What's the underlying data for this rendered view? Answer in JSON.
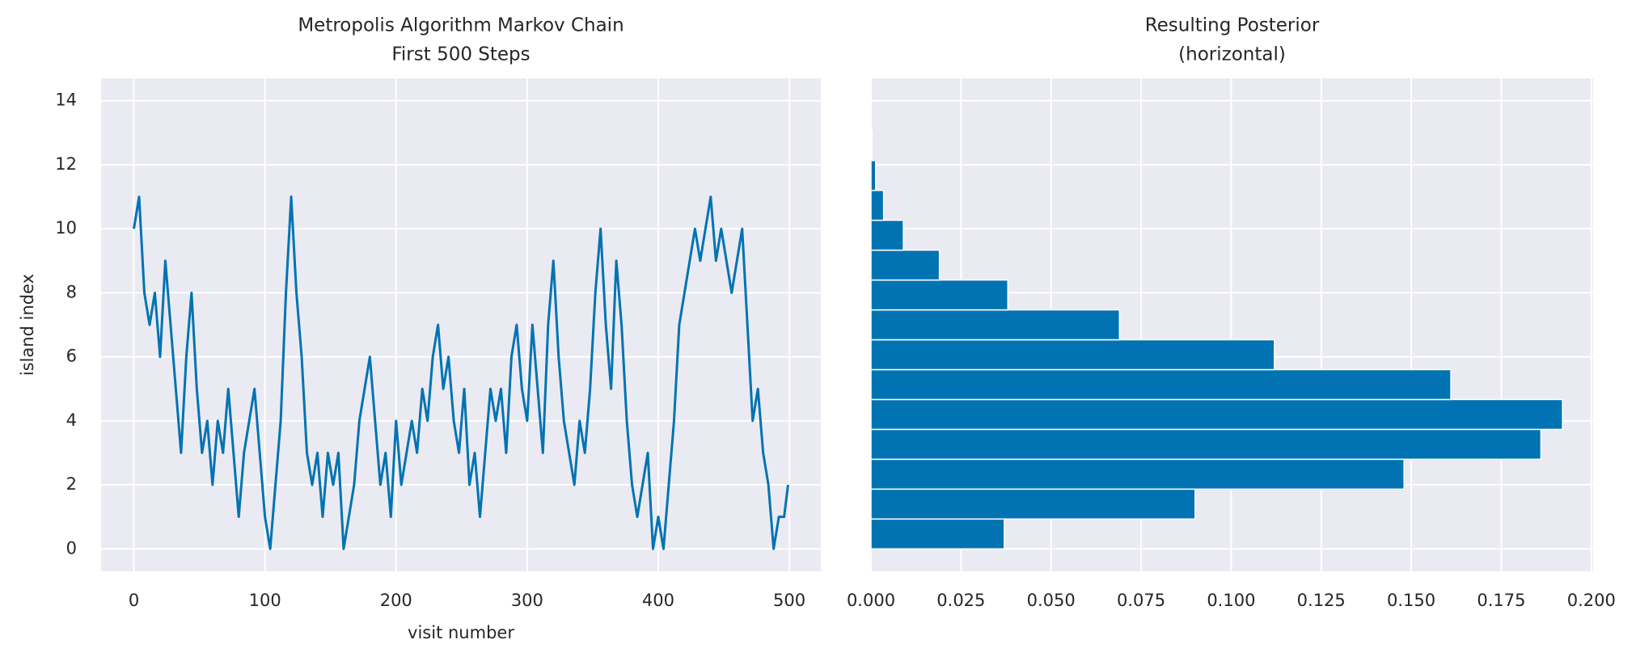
{
  "chart_data": [
    {
      "type": "line",
      "title": "Metropolis Algorithm Markov Chain",
      "subtitle": "First 500 Steps",
      "x_label": "visit number",
      "y_label": "island index",
      "x": [
        0,
        4,
        8,
        12,
        16,
        20,
        24,
        28,
        32,
        36,
        40,
        44,
        48,
        52,
        56,
        60,
        64,
        68,
        72,
        76,
        80,
        84,
        88,
        92,
        96,
        100,
        104,
        108,
        112,
        116,
        120,
        124,
        128,
        132,
        136,
        140,
        144,
        148,
        152,
        156,
        160,
        164,
        168,
        172,
        176,
        180,
        184,
        188,
        192,
        196,
        200,
        204,
        208,
        212,
        216,
        220,
        224,
        228,
        232,
        236,
        240,
        244,
        248,
        252,
        256,
        260,
        264,
        268,
        272,
        276,
        280,
        284,
        288,
        292,
        296,
        300,
        304,
        308,
        312,
        316,
        320,
        324,
        328,
        332,
        336,
        340,
        344,
        348,
        352,
        356,
        360,
        364,
        368,
        372,
        376,
        380,
        384,
        388,
        392,
        396,
        400,
        404,
        408,
        412,
        416,
        420,
        424,
        428,
        432,
        436,
        440,
        444,
        448,
        452,
        456,
        460,
        464,
        468,
        472,
        476,
        480,
        484,
        488,
        492,
        496,
        499
      ],
      "series": [
        {
          "name": "chain",
          "color": "#0173b2",
          "values": [
            10,
            11,
            8,
            7,
            8,
            6,
            9,
            7,
            5,
            3,
            6,
            8,
            5,
            3,
            4,
            2,
            4,
            3,
            5,
            3,
            1,
            3,
            4,
            5,
            3,
            1,
            0,
            2,
            4,
            8,
            11,
            8,
            6,
            3,
            2,
            3,
            1,
            3,
            2,
            3,
            0,
            1,
            2,
            4,
            5,
            6,
            4,
            2,
            3,
            1,
            4,
            2,
            3,
            4,
            3,
            5,
            4,
            6,
            7,
            5,
            6,
            4,
            3,
            5,
            2,
            3,
            1,
            3,
            5,
            4,
            5,
            3,
            6,
            7,
            5,
            4,
            7,
            5,
            3,
            7,
            9,
            6,
            4,
            3,
            2,
            4,
            3,
            5,
            8,
            10,
            7,
            5,
            9,
            7,
            4,
            2,
            1,
            2,
            3,
            0,
            1,
            0,
            2,
            4,
            7,
            8,
            9,
            10,
            9,
            10,
            11,
            9,
            10,
            9,
            8,
            9,
            10,
            7,
            4,
            5,
            3,
            2,
            0,
            1,
            1,
            2
          ]
        }
      ],
      "xlim": [
        -25,
        524
      ],
      "xticks": [
        0,
        100,
        200,
        300,
        400,
        500
      ],
      "ylim": [
        -0.7,
        14.7
      ],
      "yticks": [
        0,
        2,
        4,
        6,
        8,
        10,
        12,
        14
      ],
      "grid": true
    },
    {
      "type": "hbar-histogram",
      "title": "Resulting Posterior",
      "subtitle": "(horizontal)",
      "bins": [
        0,
        0.9333,
        1.8667,
        2.8,
        3.7333,
        4.6667,
        5.6,
        6.5333,
        7.4667,
        8.4,
        9.3333,
        10.2667,
        11.2,
        12.1333,
        13.0667,
        14
      ],
      "values": [
        0.037,
        0.09,
        0.148,
        0.186,
        0.192,
        0.161,
        0.112,
        0.069,
        0.038,
        0.019,
        0.009,
        0.0035,
        0.0013,
        0.0003,
        0.0001
      ],
      "color": "#0173b2",
      "xlim": [
        0,
        0.2005
      ],
      "xticks": [
        {
          "value": 0,
          "label": "0.000"
        },
        {
          "value": 0.025,
          "label": "0.025"
        },
        {
          "value": 0.05,
          "label": "0.050"
        },
        {
          "value": 0.075,
          "label": "0.075"
        },
        {
          "value": 0.1,
          "label": "0.100"
        },
        {
          "value": 0.125,
          "label": "0.125"
        },
        {
          "value": 0.15,
          "label": "0.150"
        },
        {
          "value": 0.175,
          "label": "0.175"
        },
        {
          "value": 0.2,
          "label": "0.200"
        }
      ],
      "ylim": [
        -0.7,
        14.7
      ],
      "yticks": [
        0,
        2,
        4,
        6,
        8,
        10,
        12,
        14
      ],
      "grid": true
    }
  ]
}
